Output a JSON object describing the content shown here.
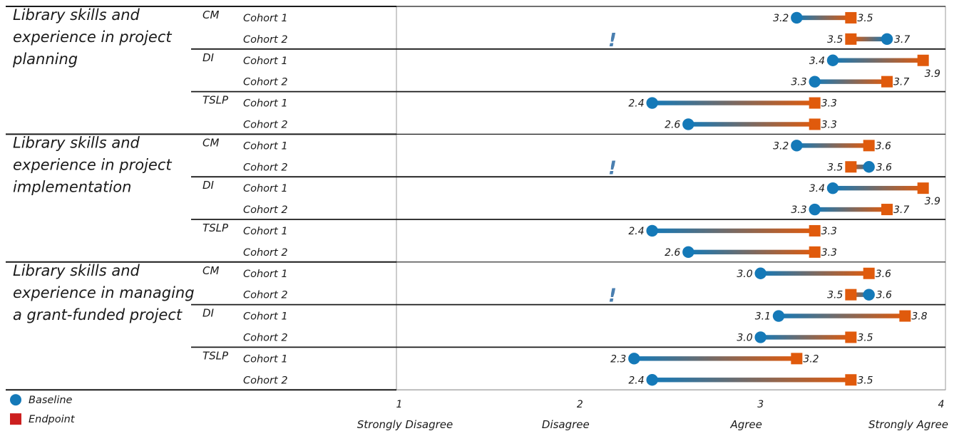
{
  "chart_data": {
    "type": "dumbbell",
    "legend": [
      {
        "name": "Baseline",
        "marker": "circle",
        "color": "#1479b8"
      },
      {
        "name": "Endpoint",
        "marker": "square",
        "color": "#cc1f1f"
      }
    ],
    "colors": {
      "baseline": "#1479b8",
      "endpoint": "#e05a0c",
      "alert": "#4a7fb0"
    },
    "xlim": [
      1,
      4
    ],
    "xticks": [
      {
        "value": 1,
        "label": "1",
        "category": "Strongly Disagree"
      },
      {
        "value": 2,
        "label": "2",
        "category": "Disagree"
      },
      {
        "value": 3,
        "label": "3",
        "category": "Agree"
      },
      {
        "value": 4,
        "label": "4",
        "category": "Strongly Agree"
      }
    ],
    "alert_symbol": "!",
    "groups": [
      {
        "title": [
          "Library skills and",
          "experience in project",
          "planning"
        ],
        "programs": [
          {
            "name": "CM",
            "cohorts": [
              {
                "name": "Cohort 1",
                "baseline": 3.2,
                "endpoint": 3.5,
                "baseline_label": "3.2",
                "endpoint_label": "3.5",
                "alert": false
              },
              {
                "name": "Cohort 2",
                "baseline": 3.7,
                "endpoint": 3.5,
                "baseline_label": "3.7",
                "endpoint_label": "3.5",
                "alert": true
              }
            ]
          },
          {
            "name": "DI",
            "cohorts": [
              {
                "name": "Cohort 1",
                "baseline": 3.4,
                "endpoint": 3.9,
                "baseline_label": "3.4",
                "endpoint_label": "3.9",
                "alert": false
              },
              {
                "name": "Cohort 2",
                "baseline": 3.3,
                "endpoint": 3.7,
                "baseline_label": "3.3",
                "endpoint_label": "3.7",
                "alert": false
              }
            ]
          },
          {
            "name": "TSLP",
            "cohorts": [
              {
                "name": "Cohort 1",
                "baseline": 2.4,
                "endpoint": 3.3,
                "baseline_label": "2.4",
                "endpoint_label": "3.3",
                "alert": false
              },
              {
                "name": "Cohort 2",
                "baseline": 2.6,
                "endpoint": 3.3,
                "baseline_label": "2.6",
                "endpoint_label": "3.3",
                "alert": false
              }
            ]
          }
        ]
      },
      {
        "title": [
          "Library skills and",
          "experience in project",
          "implementation"
        ],
        "programs": [
          {
            "name": "CM",
            "cohorts": [
              {
                "name": "Cohort 1",
                "baseline": 3.2,
                "endpoint": 3.6,
                "baseline_label": "3.2",
                "endpoint_label": "3.6",
                "alert": false
              },
              {
                "name": "Cohort 2",
                "baseline": 3.6,
                "endpoint": 3.5,
                "baseline_label": "3.6",
                "endpoint_label": "3.5",
                "alert": true
              }
            ]
          },
          {
            "name": "DI",
            "cohorts": [
              {
                "name": "Cohort 1",
                "baseline": 3.4,
                "endpoint": 3.9,
                "baseline_label": "3.4",
                "endpoint_label": "3.9",
                "alert": false
              },
              {
                "name": "Cohort 2",
                "baseline": 3.3,
                "endpoint": 3.7,
                "baseline_label": "3.3",
                "endpoint_label": "3.7",
                "alert": false
              }
            ]
          },
          {
            "name": "TSLP",
            "cohorts": [
              {
                "name": "Cohort 1",
                "baseline": 2.4,
                "endpoint": 3.3,
                "baseline_label": "2.4",
                "endpoint_label": "3.3",
                "alert": false
              },
              {
                "name": "Cohort 2",
                "baseline": 2.6,
                "endpoint": 3.3,
                "baseline_label": "2.6",
                "endpoint_label": "3.3",
                "alert": false
              }
            ]
          }
        ]
      },
      {
        "title": [
          "Library skills and",
          "experience in managing",
          "a grant-funded project"
        ],
        "programs": [
          {
            "name": "CM",
            "cohorts": [
              {
                "name": "Cohort 1",
                "baseline": 3.0,
                "endpoint": 3.6,
                "baseline_label": "3.0",
                "endpoint_label": "3.6",
                "alert": false
              },
              {
                "name": "Cohort 2",
                "baseline": 3.6,
                "endpoint": 3.5,
                "baseline_label": "3.6",
                "endpoint_label": "3.5",
                "alert": true
              }
            ]
          },
          {
            "name": "DI",
            "cohorts": [
              {
                "name": "Cohort 1",
                "baseline": 3.1,
                "endpoint": 3.8,
                "baseline_label": "3.1",
                "endpoint_label": "3.8",
                "alert": false
              },
              {
                "name": "Cohort 2",
                "baseline": 3.0,
                "endpoint": 3.5,
                "baseline_label": "3.0",
                "endpoint_label": "3.5",
                "alert": false
              }
            ]
          },
          {
            "name": "TSLP",
            "cohorts": [
              {
                "name": "Cohort 1",
                "baseline": 2.3,
                "endpoint": 3.2,
                "baseline_label": "2.3",
                "endpoint_label": "3.2",
                "alert": false
              },
              {
                "name": "Cohort 2",
                "baseline": 2.4,
                "endpoint": 3.5,
                "baseline_label": "2.4",
                "endpoint_label": "3.5",
                "alert": false
              }
            ]
          }
        ]
      }
    ]
  }
}
